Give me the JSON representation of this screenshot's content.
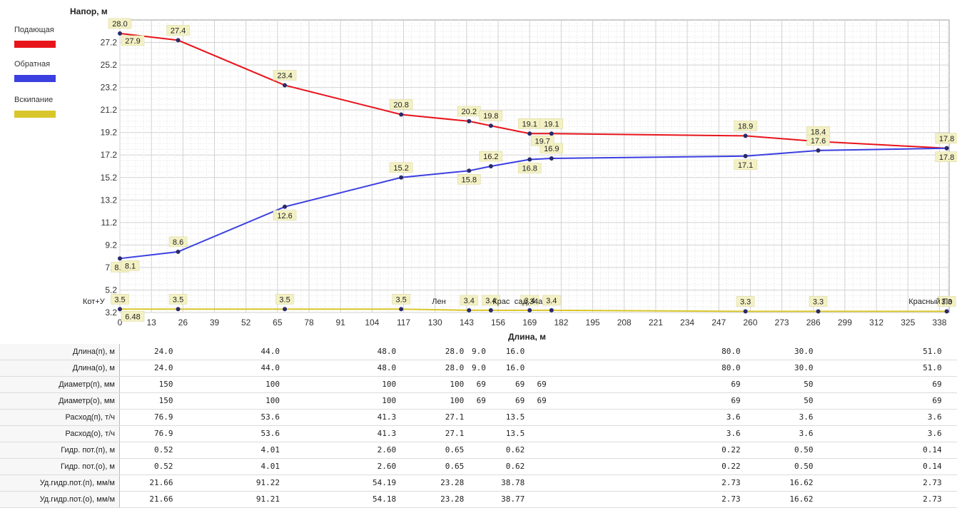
{
  "chart_data": {
    "type": "line",
    "ylabel": "Напор, м",
    "xlabel": "Длина, м",
    "xlim": [
      0,
      342
    ],
    "ylim": [
      3.2,
      29.2
    ],
    "x_ticks": [
      "0",
      "13",
      "26",
      "39",
      "52",
      "65",
      "78",
      "91",
      "104",
      "117",
      "130",
      "143",
      "156",
      "169",
      "182",
      "195",
      "208",
      "221",
      "234",
      "247",
      "260",
      "273",
      "286",
      "299",
      "312",
      "325",
      "338"
    ],
    "y_ticks": [
      "3.2",
      "5.2",
      "7.2",
      "9.2",
      "11.2",
      "13.2",
      "15.2",
      "17.2",
      "19.2",
      "21.2",
      "23.2",
      "25.2",
      "27.2"
    ],
    "grid": true,
    "legend_position": "left",
    "series": [
      {
        "name": "Подающая",
        "color": "#e8141b",
        "x": [
          0,
          24,
          68,
          116,
          144,
          153,
          169,
          178,
          258,
          288,
          341
        ],
        "y": [
          28.0,
          27.4,
          23.4,
          20.8,
          20.2,
          19.8,
          19.1,
          19.1,
          18.9,
          18.4,
          17.8
        ],
        "labels": [
          "28.0",
          "27.4",
          "23.4",
          "20.8",
          "20.2",
          "19.8",
          "19.1",
          "19.1",
          "18.9",
          "18.4",
          "17.8"
        ]
      },
      {
        "name": "Обратная",
        "color": "#3b3fe0",
        "x": [
          0,
          24,
          68,
          116,
          144,
          153,
          169,
          178,
          258,
          288,
          341
        ],
        "y": [
          8.0,
          8.6,
          12.6,
          15.2,
          15.8,
          16.2,
          16.8,
          16.9,
          17.1,
          17.6,
          17.8
        ],
        "labels": [
          "8.0",
          "8.6",
          "12.6",
          "15.2",
          "15.8",
          "16.2",
          "16.8",
          "16.9",
          "17.1",
          "17.6",
          "17.8"
        ]
      },
      {
        "name": "Вскипание",
        "color": "#d9c62a",
        "x": [
          0,
          24,
          68,
          116,
          144,
          153,
          169,
          178,
          258,
          288,
          341
        ],
        "y": [
          3.5,
          3.5,
          3.5,
          3.5,
          3.4,
          3.4,
          3.4,
          3.4,
          3.3,
          3.3,
          3.3
        ],
        "labels": [
          "3.5",
          "3.5",
          "3.5",
          "3.5",
          "3.4",
          "3.4",
          "3.4",
          "3.4",
          "3.3",
          "3.3",
          "3.3"
        ]
      }
    ],
    "station_labels": [
      {
        "x": 0,
        "text": "Кот+У"
      },
      {
        "x": 144,
        "text": "Лен"
      },
      {
        "x": 169,
        "text": "Крас"
      },
      {
        "x": 178,
        "text": "сад,34а"
      },
      {
        "x": 341,
        "text": "Красный По"
      }
    ],
    "extra_labels": [
      {
        "series": 0,
        "x": 0,
        "text": "27.9"
      },
      {
        "series": 1,
        "x": 0,
        "text": "8.1"
      },
      {
        "series": 0,
        "x": 169,
        "text": "19.7"
      },
      {
        "series": 2,
        "x": 0,
        "text": "6.48"
      }
    ]
  },
  "table": {
    "rows": [
      {
        "label": "Длина(п), м",
        "cells": [
          [
            "24.0",
            24
          ],
          [
            "44.0",
            68
          ],
          [
            "48.0",
            116
          ],
          [
            "28.0",
            144
          ],
          [
            "9.0",
            153
          ],
          [
            "16.0",
            169
          ],
          [
            "80.0",
            258
          ],
          [
            "30.0",
            288
          ],
          [
            "51.0",
            341
          ]
        ]
      },
      {
        "label": "Длина(о), м",
        "cells": [
          [
            "24.0",
            24
          ],
          [
            "44.0",
            68
          ],
          [
            "48.0",
            116
          ],
          [
            "28.0",
            144
          ],
          [
            "9.0",
            153
          ],
          [
            "16.0",
            169
          ],
          [
            "80.0",
            258
          ],
          [
            "30.0",
            288
          ],
          [
            "51.0",
            341
          ]
        ]
      },
      {
        "label": "Диаметр(п), мм",
        "cells": [
          [
            "150",
            24
          ],
          [
            "100",
            68
          ],
          [
            "100",
            116
          ],
          [
            "100",
            144
          ],
          [
            "69",
            153
          ],
          [
            "69",
            169
          ],
          [
            "69",
            178
          ],
          [
            "69",
            258
          ],
          [
            "50",
            288
          ],
          [
            "69",
            341
          ]
        ]
      },
      {
        "label": "Диаметр(о), мм",
        "cells": [
          [
            "150",
            24
          ],
          [
            "100",
            68
          ],
          [
            "100",
            116
          ],
          [
            "100",
            144
          ],
          [
            "69",
            153
          ],
          [
            "69",
            169
          ],
          [
            "69",
            178
          ],
          [
            "69",
            258
          ],
          [
            "50",
            288
          ],
          [
            "69",
            341
          ]
        ]
      },
      {
        "label": "Расход(п), т/ч",
        "cells": [
          [
            "76.9",
            24
          ],
          [
            "53.6",
            68
          ],
          [
            "41.3",
            116
          ],
          [
            "27.1",
            144
          ],
          [
            "13.5",
            169
          ],
          [
            "3.6",
            258
          ],
          [
            "3.6",
            288
          ],
          [
            "3.6",
            341
          ]
        ]
      },
      {
        "label": "Расход(о), т/ч",
        "cells": [
          [
            "76.9",
            24
          ],
          [
            "53.6",
            68
          ],
          [
            "41.3",
            116
          ],
          [
            "27.1",
            144
          ],
          [
            "13.5",
            169
          ],
          [
            "3.6",
            258
          ],
          [
            "3.6",
            288
          ],
          [
            "3.6",
            341
          ]
        ]
      },
      {
        "label": "Гидр. пот.(п), м",
        "cells": [
          [
            "0.52",
            24
          ],
          [
            "4.01",
            68
          ],
          [
            "2.60",
            116
          ],
          [
            "0.65",
            144
          ],
          [
            "0.62",
            169
          ],
          [
            "0.22",
            258
          ],
          [
            "0.50",
            288
          ],
          [
            "0.14",
            341
          ]
        ]
      },
      {
        "label": "Гидр. пот.(о), м",
        "cells": [
          [
            "0.52",
            24
          ],
          [
            "4.01",
            68
          ],
          [
            "2.60",
            116
          ],
          [
            "0.65",
            144
          ],
          [
            "0.62",
            169
          ],
          [
            "0.22",
            258
          ],
          [
            "0.50",
            288
          ],
          [
            "0.14",
            341
          ]
        ]
      },
      {
        "label": "Уд.гидр.пот.(п), мм/м",
        "cells": [
          [
            "21.66",
            24
          ],
          [
            "91.22",
            68
          ],
          [
            "54.19",
            116
          ],
          [
            "23.28",
            144
          ],
          [
            "38.78",
            169
          ],
          [
            "2.73",
            258
          ],
          [
            "16.62",
            288
          ],
          [
            "2.73",
            341
          ]
        ]
      },
      {
        "label": "Уд.гидр.пот.(о), мм/м",
        "cells": [
          [
            "21.66",
            24
          ],
          [
            "91.21",
            68
          ],
          [
            "54.18",
            116
          ],
          [
            "23.28",
            144
          ],
          [
            "38.77",
            169
          ],
          [
            "2.73",
            258
          ],
          [
            "16.62",
            288
          ],
          [
            "2.73",
            341
          ]
        ]
      }
    ]
  }
}
